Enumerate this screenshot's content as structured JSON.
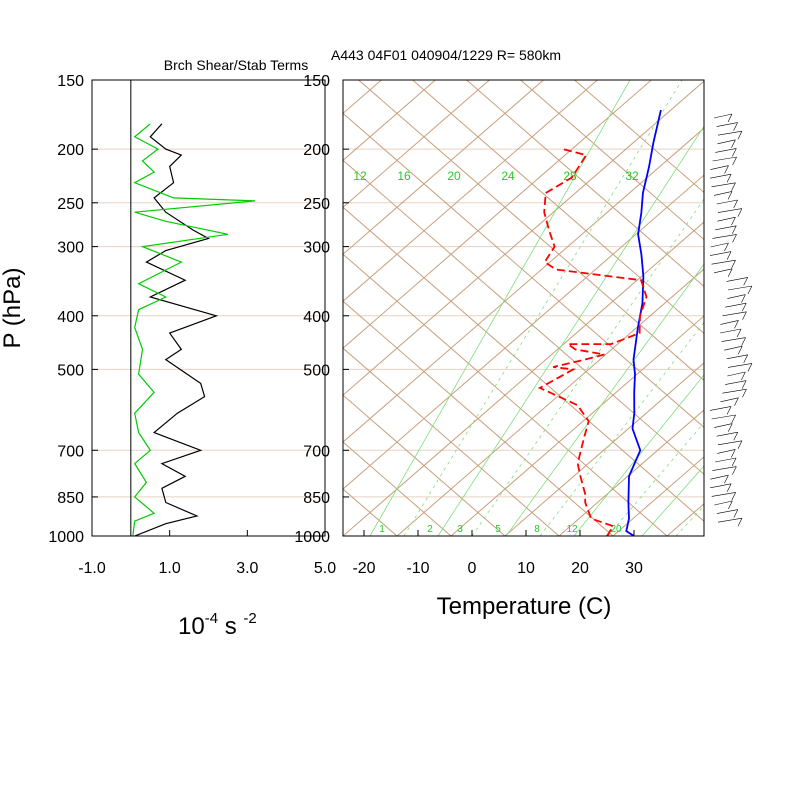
{
  "colors": {
    "temperature": "#ff0000",
    "dewpoint": "#0000ff",
    "shear_term": "#000000",
    "stability_term": "#00cc00",
    "skewt_grid": "#c8a07c",
    "mixing_ratio": "#7ce07c",
    "mixing_ratio_label": "#22cc22",
    "pressure_grid": "#e8d2c2",
    "wind_barbs": "#000000"
  },
  "chart_data": [
    {
      "type": "line",
      "title": "Brch Shear/Stab Terms",
      "ylabel": "P (hPa)",
      "xlabel": "",
      "unit_label": {
        "base": "10",
        "exp1": "-4",
        "mid": " s ",
        "exp2": "-2"
      },
      "y_scale": "log",
      "y_reversed": true,
      "ylim": [
        1000,
        150
      ],
      "xlim": [
        -1.0,
        5.0
      ],
      "x_ticks": [
        "-1.0",
        "1.0",
        "3.0",
        "5.0"
      ],
      "x_tick_values": [
        -1.0,
        1.0,
        3.0,
        5.0
      ],
      "y_ticks": [
        "150",
        "200",
        "250",
        "300",
        "400",
        "500",
        "700",
        "850",
        "1000"
      ],
      "y_tick_values": [
        150,
        200,
        250,
        300,
        400,
        500,
        700,
        850,
        1000
      ],
      "zero_line": true,
      "series": [
        {
          "key": "shear",
          "points": [
            [
              0.8,
              180
            ],
            [
              0.5,
              190
            ],
            [
              0.9,
              200
            ],
            [
              1.3,
              205
            ],
            [
              1.0,
              215
            ],
            [
              1.1,
              230
            ],
            [
              0.6,
              245
            ],
            [
              0.9,
              260
            ],
            [
              1.6,
              280
            ],
            [
              2.0,
              290
            ],
            [
              0.9,
              305
            ],
            [
              0.4,
              320
            ],
            [
              1.4,
              345
            ],
            [
              0.5,
              370
            ],
            [
              2.2,
              400
            ],
            [
              1.0,
              430
            ],
            [
              1.3,
              460
            ],
            [
              0.9,
              480
            ],
            [
              1.8,
              530
            ],
            [
              1.9,
              560
            ],
            [
              1.2,
              600
            ],
            [
              0.6,
              650
            ],
            [
              1.8,
              700
            ],
            [
              0.8,
              740
            ],
            [
              1.4,
              780
            ],
            [
              0.8,
              820
            ],
            [
              0.9,
              870
            ],
            [
              1.7,
              920
            ],
            [
              0.9,
              950
            ],
            [
              0.1,
              1000
            ]
          ]
        },
        {
          "key": "stability",
          "points": [
            [
              0.5,
              180
            ],
            [
              0.1,
              190
            ],
            [
              0.7,
              200
            ],
            [
              0.3,
              210
            ],
            [
              0.6,
              220
            ],
            [
              0.1,
              230
            ],
            [
              1.1,
              245
            ],
            [
              3.2,
              248
            ],
            [
              0.1,
              260
            ],
            [
              0.9,
              270
            ],
            [
              2.5,
              285
            ],
            [
              0.3,
              300
            ],
            [
              1.3,
              320
            ],
            [
              0.2,
              350
            ],
            [
              0.9,
              370
            ],
            [
              0.2,
              390
            ],
            [
              0.1,
              420
            ],
            [
              0.3,
              460
            ],
            [
              0.2,
              510
            ],
            [
              0.6,
              550
            ],
            [
              0.1,
              600
            ],
            [
              0.2,
              650
            ],
            [
              0.5,
              700
            ],
            [
              0.1,
              740
            ],
            [
              0.4,
              800
            ],
            [
              0.1,
              850
            ],
            [
              0.6,
              910
            ],
            [
              0.1,
              940
            ],
            [
              0.05,
              1000
            ]
          ]
        }
      ]
    },
    {
      "type": "line",
      "title": "A443 04F01 040904/1229 R= 580km",
      "xlabel": "Temperature (C)",
      "ylabel": "",
      "y_scale": "log",
      "y_reversed": true,
      "ylim": [
        1000,
        150
      ],
      "xlim": [
        -23,
        42
      ],
      "skew": "skew-T log-P",
      "x_ticks": [
        "-20",
        "-10",
        "0",
        "10",
        "20",
        "30"
      ],
      "x_tick_values": [
        -20,
        -10,
        0,
        10,
        20,
        30
      ],
      "y_ticks": [
        "150",
        "200",
        "250",
        "300",
        "400",
        "500",
        "700",
        "850",
        "1000"
      ],
      "y_tick_values": [
        150,
        200,
        250,
        300,
        400,
        500,
        700,
        850,
        1000
      ],
      "mixing_ratio_labels_top": [
        "12",
        "16",
        "20",
        "24",
        "28",
        "32"
      ],
      "mixing_ratio_labels_bottom": [
        "1",
        "2",
        "3",
        "5",
        "8",
        "12",
        "20"
      ],
      "series": [
        {
          "key": "temperature",
          "points": [
            [
              30,
              1000
            ],
            [
              28,
              980
            ],
            [
              27,
              930
            ],
            [
              25,
              870
            ],
            [
              22,
              780
            ],
            [
              21,
              700
            ],
            [
              17,
              640
            ],
            [
              15.5,
              600
            ],
            [
              13,
              550
            ],
            [
              11,
              510
            ],
            [
              9,
              480
            ],
            [
              6,
              420
            ],
            [
              4,
              380
            ],
            [
              1,
              340
            ],
            [
              -2,
              310
            ],
            [
              -5,
              285
            ],
            [
              -7,
              260
            ],
            [
              -9,
              240
            ],
            [
              -11,
              215
            ],
            [
              -13,
              195
            ],
            [
              -15.5,
              170
            ]
          ]
        },
        {
          "key": "dewpoint",
          "points": [
            [
              25,
              1000
            ],
            [
              25,
              960
            ],
            [
              20,
              930
            ],
            [
              17,
              870
            ],
            [
              16,
              840
            ],
            [
              13,
              780
            ],
            [
              11,
              740
            ],
            [
              10,
              700
            ],
            [
              9,
              660
            ],
            [
              8,
              620
            ],
            [
              4,
              580
            ],
            [
              -5,
              540
            ],
            [
              -3,
              520
            ],
            [
              -1,
              500
            ],
            [
              -5,
              495
            ],
            [
              0,
              480
            ],
            [
              3,
              470
            ],
            [
              -3,
              460
            ],
            [
              -5,
              450
            ],
            [
              3,
              450
            ],
            [
              7,
              430
            ],
            [
              5,
              400
            ],
            [
              4,
              370
            ],
            [
              1,
              345
            ],
            [
              -16,
              330
            ],
            [
              -19,
              320
            ],
            [
              -19,
              300
            ],
            [
              -22,
              280
            ],
            [
              -25,
              260
            ],
            [
              -27,
              240
            ],
            [
              -24,
              225
            ],
            [
              -24,
              205
            ],
            [
              -29,
              200
            ]
          ]
        }
      ]
    }
  ]
}
